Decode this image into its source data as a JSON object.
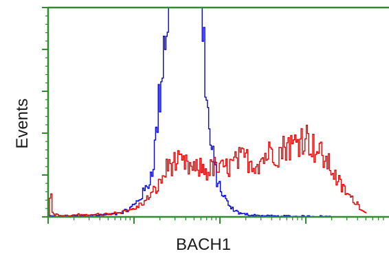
{
  "chart_data": {
    "type": "line",
    "title": "",
    "xlabel": "BACH1",
    "ylabel": "Events",
    "x_scale": "log",
    "x_ticks_decades": [
      1,
      10,
      100,
      1000,
      10000
    ],
    "grid": false,
    "legend": "none",
    "colors": {
      "axis": "#2e8b2e",
      "text": "#1a1a1a"
    },
    "series": [
      {
        "color": "#0000e6",
        "x": [
          1.0,
          1.6,
          2.5,
          4.0,
          5.5,
          7.0,
          8.5,
          10.0,
          11.5,
          13.0,
          15.0,
          17.0,
          19.0,
          21.0,
          23.0,
          25.0,
          27.0,
          29.0,
          32.0,
          35.0,
          38.0,
          41.0,
          44.0,
          47.0,
          50.0,
          54.0,
          58.0,
          62.0,
          66.0,
          70.0,
          75.0,
          80.0,
          85.0,
          90.0,
          100.0,
          115.0,
          130.0,
          150.0,
          180.0,
          220.0,
          280.0,
          350.0,
          450.0,
          600.0,
          800.0,
          1200.0,
          2000.0
        ],
        "y": [
          1,
          3,
          5,
          8,
          12,
          20,
          34,
          60,
          90,
          120,
          170,
          300,
          520,
          740,
          920,
          1000,
          1000,
          1000,
          1000,
          1000,
          1000,
          1000,
          1000,
          1000,
          1000,
          1000,
          1000,
          950,
          720,
          520,
          380,
          300,
          250,
          190,
          130,
          80,
          45,
          26,
          14,
          9,
          6,
          4,
          3,
          3,
          2,
          2,
          1
        ]
      },
      {
        "color": "#e60000",
        "x": [
          1.0,
          1.05,
          1.1,
          1.3,
          1.6,
          2.0,
          3.0,
          4.5,
          6.0,
          8.0,
          10.0,
          13.0,
          16.0,
          19.0,
          22.0,
          25.0,
          30.0,
          36.0,
          42.0,
          50.0,
          60.0,
          70.0,
          80.0,
          100.0,
          130.0,
          160.0,
          200.0,
          250.0,
          300.0,
          350.0,
          400.0,
          450.0,
          500.0,
          600.0,
          700.0,
          800.0,
          900.0,
          1000.0,
          1100.0,
          1200.0,
          1400.0,
          1600.0,
          1900.0,
          2200.0,
          2600.0,
          3000.0,
          3500.0,
          4000.0,
          4500.0,
          5000.0
        ],
        "y": [
          7,
          160,
          18,
          6,
          4,
          8,
          10,
          12,
          20,
          28,
          40,
          70,
          110,
          150,
          200,
          250,
          260,
          250,
          240,
          220,
          235,
          215,
          240,
          225,
          245,
          270,
          280,
          250,
          275,
          300,
          320,
          300,
          315,
          350,
          335,
          370,
          390,
          380,
          360,
          335,
          310,
          280,
          240,
          190,
          140,
          110,
          80,
          60,
          35,
          15
        ]
      }
    ]
  }
}
